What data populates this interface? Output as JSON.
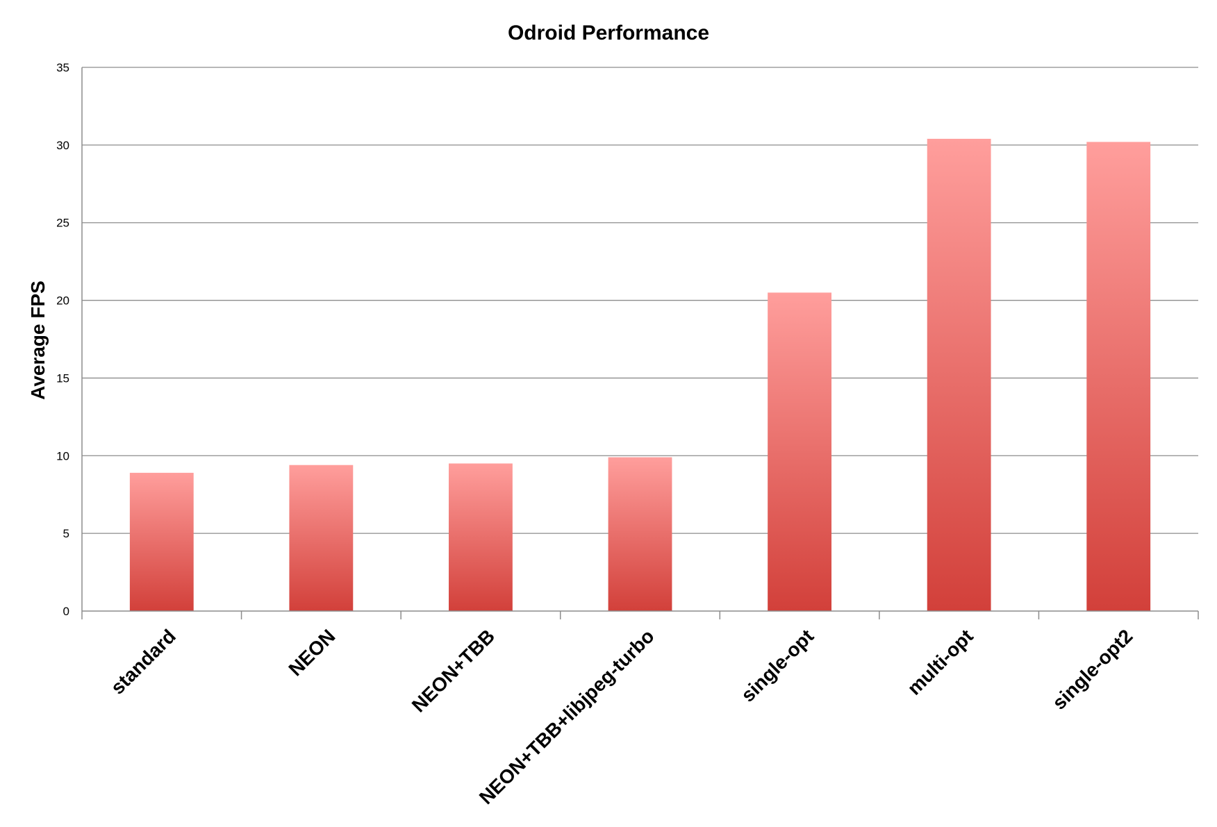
{
  "chart_data": {
    "type": "bar",
    "title": "Odroid Performance",
    "xlabel": "",
    "ylabel": "Average FPS",
    "categories": [
      "standard",
      "NEON",
      "NEON+TBB",
      "NEON+TBB+libjpeg-turbo",
      "single-opt",
      "multi-opt",
      "single-opt2"
    ],
    "values": [
      8.9,
      9.4,
      9.5,
      9.9,
      20.5,
      30.4,
      30.2
    ],
    "ylim": [
      0,
      35
    ],
    "yticks": [
      0,
      5,
      10,
      15,
      20,
      25,
      30,
      35
    ],
    "grid": true,
    "legend": "none",
    "bar_color_top": "#ff9e9c",
    "bar_color_bottom": "#d2403a",
    "tick_label_rotation": -45
  }
}
